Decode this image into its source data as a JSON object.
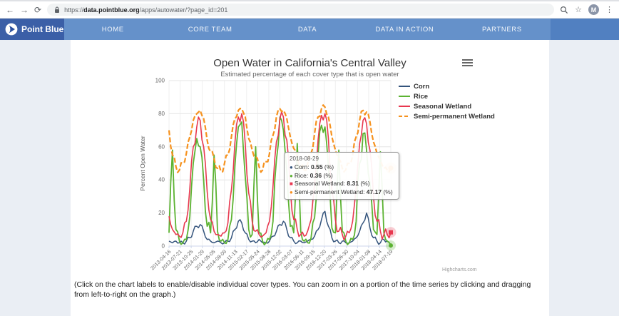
{
  "browser": {
    "back": "←",
    "forward": "→",
    "refresh": "⟳",
    "url_scheme": "https://",
    "url_host": "data.pointblue.org",
    "url_path": "/apps/autowater/?page_id=201",
    "avatar_letter": "M"
  },
  "header": {
    "brand": "Point Blue",
    "nav_items": [
      "HOME",
      "CORE TEAM",
      "DATA",
      "DATA IN ACTION",
      "PARTNERS"
    ]
  },
  "chart": {
    "title": "Open Water in California's Central Valley",
    "subtitle": "Estimated percentage of each cover type that is open water",
    "y_axis_title": "Percent Open Water",
    "credits": "Highcharts.com"
  },
  "tooltip": {
    "date": "2018-08-29",
    "rows": [
      {
        "marker": "●",
        "series": "Corn",
        "value": "0.55",
        "unit": "(%)",
        "color": "#34547c"
      },
      {
        "marker": "●",
        "series": "Rice",
        "value": "0.36",
        "unit": "(%)",
        "color": "#5cb332"
      },
      {
        "marker": "■",
        "series": "Seasonal Wetland",
        "value": "8.31",
        "unit": "(%)",
        "color": "#e8384f"
      },
      {
        "marker": "●",
        "series": "Semi-permanent Wetland",
        "value": "47.17",
        "unit": "(%)",
        "color": "#f6921e"
      }
    ]
  },
  "caption": "(Click on the chart labels to enable/disable individual cover types. You can zoom in on a portion of the time series by clicking and dragging from left-to-right on the graph.)",
  "chart_data": {
    "type": "line",
    "title": "Open Water in California's Central Valley",
    "subtitle": "Estimated percentage of each cover type that is open water",
    "ylabel": "Percent Open Water",
    "ylim": [
      0,
      100
    ],
    "y_ticks": [
      0,
      20,
      40,
      60,
      80,
      100
    ],
    "grid": true,
    "legend_position": "top-right",
    "x_tick_labels": [
      "2013-04-16",
      "2013-07-21",
      "2013-10-25",
      "2014-01-29",
      "2014-05-05",
      "2014-08-09",
      "2014-11-13",
      "2015-02-17",
      "2015-05-24",
      "2015-08-28",
      "2015-12-02",
      "2016-03-07",
      "2016-06-11",
      "2016-09-15",
      "2016-12-20",
      "2017-03-26",
      "2017-06-30",
      "2017-10-04",
      "2018-01-08",
      "2018-04-14",
      "2018-07-19"
    ],
    "x": [
      "2013-04",
      "2013-05",
      "2013-06",
      "2013-07",
      "2013-08",
      "2013-09",
      "2013-10",
      "2013-11",
      "2013-12",
      "2014-01",
      "2014-02",
      "2014-03",
      "2014-04",
      "2014-05",
      "2014-06",
      "2014-07",
      "2014-08",
      "2014-09",
      "2014-10",
      "2014-11",
      "2014-12",
      "2015-01",
      "2015-02",
      "2015-03",
      "2015-04",
      "2015-05",
      "2015-06",
      "2015-07",
      "2015-08",
      "2015-09",
      "2015-10",
      "2015-11",
      "2015-12",
      "2016-01",
      "2016-02",
      "2016-03",
      "2016-04",
      "2016-05",
      "2016-06",
      "2016-07",
      "2016-08",
      "2016-09",
      "2016-10",
      "2016-11",
      "2016-12",
      "2017-01",
      "2017-02",
      "2017-03",
      "2017-04",
      "2017-05",
      "2017-06",
      "2017-07",
      "2017-08",
      "2017-09",
      "2017-10",
      "2017-11",
      "2017-12",
      "2018-01",
      "2018-02",
      "2018-03",
      "2018-04",
      "2018-05",
      "2018-06",
      "2018-07",
      "2018-08"
    ],
    "series": [
      {
        "name": "Corn",
        "color": "#34547c",
        "dash": false,
        "values": [
          3,
          2,
          3,
          2,
          2,
          3,
          5,
          9,
          12,
          13,
          9,
          4,
          3,
          2,
          3,
          2,
          2,
          3,
          5,
          10,
          15,
          14,
          8,
          4,
          3,
          2,
          4,
          2,
          2,
          3,
          6,
          9,
          13,
          15,
          10,
          5,
          3,
          2,
          3,
          2,
          3,
          4,
          6,
          10,
          16,
          21,
          12,
          5,
          3,
          2,
          3,
          2,
          2,
          3,
          5,
          9,
          14,
          20,
          11,
          5,
          3,
          2,
          4,
          3,
          0.55
        ]
      },
      {
        "name": "Rice",
        "color": "#5cb332",
        "dash": false,
        "values": [
          8,
          58,
          10,
          3,
          2,
          4,
          18,
          50,
          65,
          60,
          40,
          12,
          8,
          55,
          9,
          3,
          2,
          4,
          16,
          48,
          72,
          75,
          42,
          10,
          7,
          60,
          8,
          3,
          2,
          4,
          15,
          52,
          78,
          70,
          45,
          12,
          8,
          62,
          9,
          3,
          2,
          5,
          17,
          55,
          73,
          72,
          48,
          11,
          8,
          58,
          9,
          3,
          2,
          4,
          15,
          50,
          68,
          58,
          38,
          10,
          7,
          57,
          8,
          3,
          0.36
        ]
      },
      {
        "name": "Seasonal Wetland",
        "color": "#e8384f",
        "dash": false,
        "values": [
          18,
          10,
          7,
          6,
          8,
          15,
          35,
          60,
          72,
          76,
          60,
          33,
          16,
          9,
          7,
          6,
          8,
          14,
          34,
          62,
          78,
          80,
          62,
          32,
          15,
          9,
          7,
          6,
          8,
          15,
          36,
          63,
          77,
          78,
          64,
          34,
          16,
          10,
          7,
          6,
          9,
          16,
          37,
          64,
          79,
          80,
          65,
          33,
          16,
          9,
          7,
          6,
          8,
          15,
          35,
          62,
          76,
          74,
          58,
          30,
          15,
          9,
          7,
          7,
          8.31
        ]
      },
      {
        "name": "Semi-permanent Wetland",
        "color": "#f6921e",
        "dash": true,
        "values": [
          70,
          55,
          48,
          46,
          50,
          56,
          66,
          76,
          80,
          82,
          77,
          64,
          57,
          53,
          47,
          45,
          50,
          55,
          66,
          77,
          82,
          83,
          78,
          65,
          58,
          54,
          48,
          46,
          51,
          56,
          67,
          78,
          83,
          82,
          77,
          66,
          59,
          54,
          48,
          46,
          50,
          56,
          68,
          78,
          83,
          84,
          78,
          66,
          58,
          53,
          47,
          46,
          50,
          55,
          66,
          76,
          82,
          81,
          75,
          63,
          56,
          52,
          47,
          46,
          47.17
        ]
      }
    ]
  }
}
